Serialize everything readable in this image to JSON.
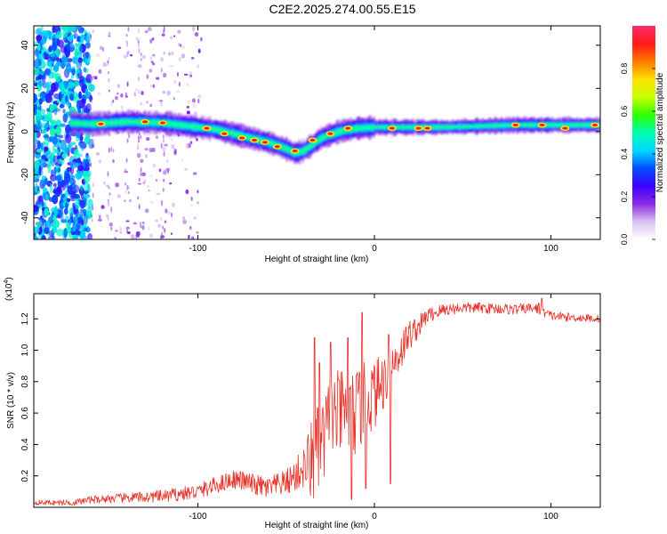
{
  "title": "C2E2.2025.274.00.55.E15",
  "chart_data": [
    {
      "type": "heatmap",
      "name": "spectrogram",
      "xlabel": "Height of straight line (km)",
      "ylabel": "Frequency (Hz)",
      "xlim": [
        -193,
        128
      ],
      "ylim": [
        -50,
        49
      ],
      "xticks": [
        -100,
        0,
        100
      ],
      "yticks": [
        -40,
        -20,
        0,
        20,
        40
      ],
      "ridge_x": [
        -172,
        -160,
        -140,
        -120,
        -110,
        -100,
        -90,
        -80,
        -70,
        -60,
        -50,
        -45,
        -40,
        -35,
        -30,
        -20,
        -10,
        0,
        10,
        20,
        40,
        60,
        80,
        100,
        128
      ],
      "ridge_y": [
        4,
        3.5,
        4.5,
        4,
        3,
        2,
        1,
        -1,
        -3,
        -5,
        -8,
        -10,
        -9,
        -6,
        -3,
        0,
        1.5,
        2,
        2,
        2,
        2,
        2.5,
        3,
        3,
        3
      ],
      "high_amplitude_points": [
        [
          -155,
          3.5
        ],
        [
          -130,
          4.5
        ],
        [
          -120,
          4
        ],
        [
          -95,
          1.5
        ],
        [
          -85,
          -1
        ],
        [
          -75,
          -3
        ],
        [
          -68,
          -4
        ],
        [
          -62,
          -5
        ],
        [
          -55,
          -7
        ],
        [
          -45,
          -9
        ],
        [
          -35,
          -4
        ],
        [
          -25,
          -1
        ],
        [
          -15,
          1.5
        ],
        [
          10,
          1.5
        ],
        [
          25,
          1.5
        ],
        [
          30,
          1.5
        ],
        [
          80,
          3
        ],
        [
          95,
          3
        ],
        [
          108,
          1.5
        ],
        [
          125,
          3
        ]
      ],
      "colorbar": {
        "label": "Normalized spectral amplitude",
        "range": [
          0,
          1
        ],
        "ticks": [
          "0.0",
          "0.2",
          "0.4",
          "0.6",
          "0.8"
        ],
        "colors": [
          "#ffffff",
          "#d9c2f2",
          "#8a2be2",
          "#3a00ff",
          "#0050ff",
          "#00d8ff",
          "#00ffb0",
          "#30ff00",
          "#c8ff00",
          "#ffe000",
          "#ff7a00",
          "#ff1a1a",
          "#ff2d6e"
        ]
      }
    },
    {
      "type": "line",
      "name": "snr",
      "xlabel": "Height of straight line (km)",
      "ylabel": "SNR (10 * v/v)",
      "scale_label": "(x10",
      "scale_exponent": "4",
      "xlim": [
        -193,
        128
      ],
      "ylim": [
        0,
        1.36
      ],
      "xticks": [
        -100,
        0,
        100
      ],
      "yticks": [
        "0.2",
        "0.4",
        "0.6",
        "0.8",
        "1.0",
        "1.2"
      ],
      "color": "#e8332a",
      "envelope_x": [
        -193,
        -170,
        -160,
        -140,
        -120,
        -100,
        -90,
        -80,
        -75,
        -70,
        -60,
        -50,
        -45,
        -40,
        -35,
        -30,
        -28,
        -25,
        -20,
        -15,
        -10,
        -5,
        0,
        5,
        10,
        15,
        20,
        25,
        30,
        40,
        50,
        60,
        80,
        90,
        95,
        100,
        110,
        128
      ],
      "envelope_y": [
        0.03,
        0.03,
        0.05,
        0.06,
        0.07,
        0.1,
        0.14,
        0.18,
        0.17,
        0.15,
        0.12,
        0.16,
        0.2,
        0.25,
        0.3,
        0.38,
        0.45,
        0.55,
        0.6,
        0.58,
        0.6,
        0.68,
        0.72,
        0.8,
        0.9,
        1.0,
        1.1,
        1.15,
        1.22,
        1.26,
        1.27,
        1.27,
        1.26,
        1.27,
        1.25,
        1.22,
        1.21,
        1.2
      ],
      "noise_amplitude_x": [
        -193,
        -170,
        -120,
        -80,
        -50,
        -40,
        -35,
        -30,
        -20,
        -10,
        0,
        10,
        20,
        30,
        50,
        80,
        100,
        128
      ],
      "noise_amplitude_y": [
        0.015,
        0.02,
        0.04,
        0.06,
        0.08,
        0.14,
        0.3,
        0.3,
        0.28,
        0.28,
        0.22,
        0.16,
        0.1,
        0.05,
        0.035,
        0.035,
        0.03,
        0.025
      ],
      "spikes": [
        [
          -34,
          1.08
        ],
        [
          -31,
          0.92
        ],
        [
          -25,
          1.05
        ],
        [
          -15,
          1.08
        ],
        [
          -13,
          0.05
        ],
        [
          -7,
          1.24
        ],
        [
          -5,
          0.12
        ],
        [
          8,
          1.1
        ],
        [
          9,
          0.15
        ],
        [
          95,
          1.33
        ],
        [
          93,
          1.3
        ]
      ]
    }
  ]
}
